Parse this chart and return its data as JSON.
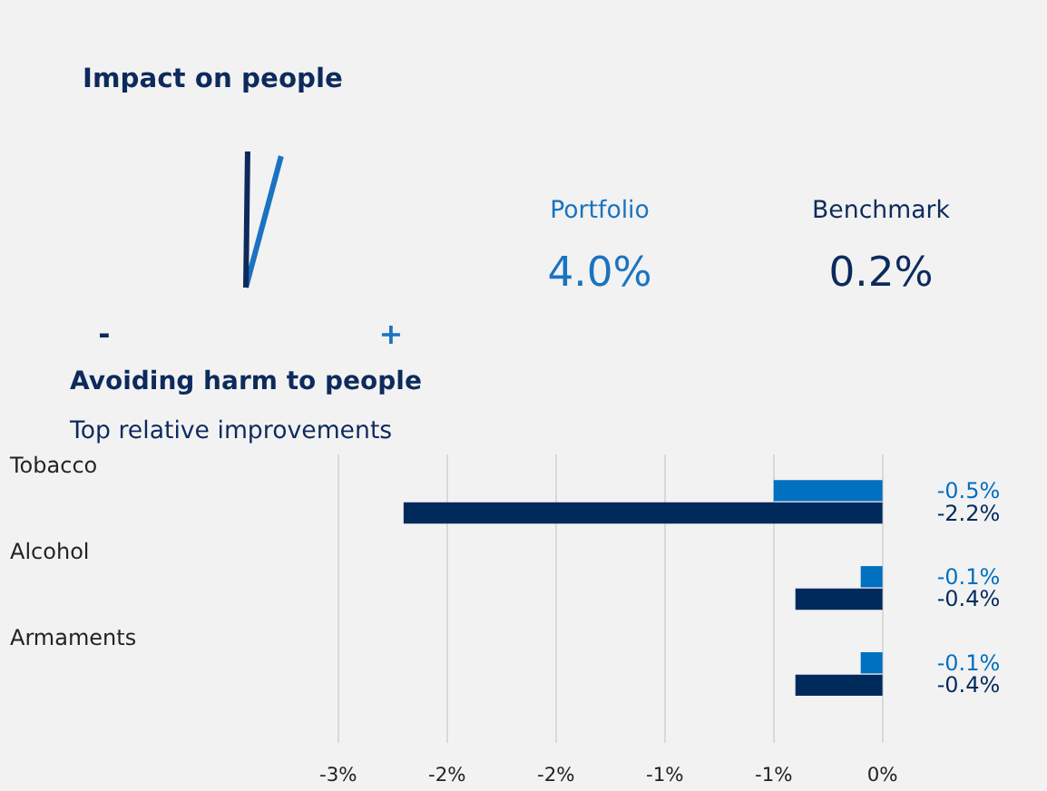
{
  "chart_data": [
    {
      "type": "other",
      "title": "Impact on people",
      "categories": [
        "Portfolio",
        "Benchmark"
      ],
      "values": [
        4.0,
        0.2
      ],
      "colors": [
        "#1a73c0",
        "#0d2a5c"
      ],
      "value_labels": [
        "4.0%",
        "0.2%"
      ],
      "annotations": [
        "-",
        "+"
      ]
    },
    {
      "type": "bar",
      "orientation": "horizontal",
      "title": "Avoiding harm to people",
      "subtitle": "Top relative improvements",
      "categories": [
        "Tobacco",
        "Alcohol",
        "Armaments"
      ],
      "series": [
        {
          "color": "#0070c0",
          "values": [
            -0.5,
            -0.1,
            -0.1
          ],
          "value_labels": [
            "-0.5%",
            "-0.1%",
            "-0.1%"
          ]
        },
        {
          "color": "#002a5c",
          "values": [
            -2.2,
            -0.4,
            -0.4
          ],
          "value_labels": [
            "-2.2%",
            "-0.4%",
            "-0.4%"
          ]
        }
      ],
      "xlim": [
        -4.05,
        0.76
      ],
      "xticks": [
        {
          "value": -2.5,
          "label": "-3%"
        },
        {
          "value": -2,
          "label": "-2%"
        },
        {
          "value": -1.5,
          "label": "-2%"
        },
        {
          "value": -1,
          "label": "-1%"
        },
        {
          "value": -0.5,
          "label": "-1%"
        },
        {
          "value": 0,
          "label": "0%"
        }
      ],
      "grid": "x"
    }
  ]
}
